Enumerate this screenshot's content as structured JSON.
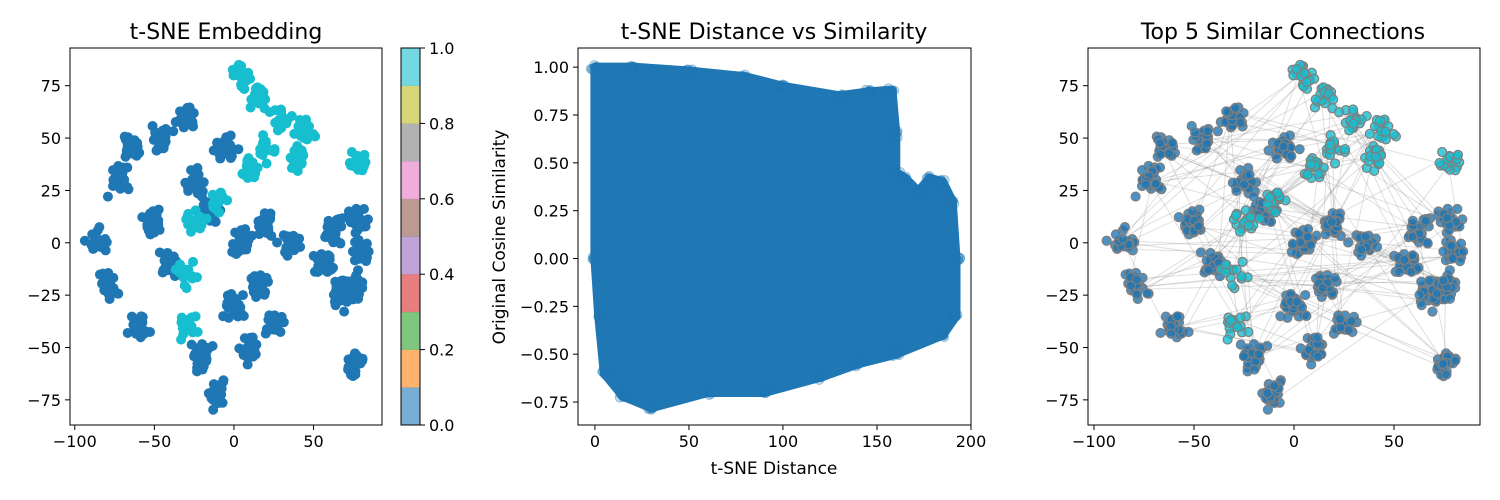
{
  "chart_data": [
    {
      "type": "scatter",
      "title": "t-SNE Embedding",
      "xlabel": "",
      "ylabel": "",
      "xlim": [
        -103,
        93
      ],
      "ylim": [
        -87,
        93
      ],
      "xticks": [
        -100,
        -50,
        0,
        50
      ],
      "yticks": [
        -75,
        -50,
        -25,
        0,
        25,
        50,
        75
      ],
      "tick_labels_x": [
        "−100",
        "−50",
        "0",
        "50"
      ],
      "tick_labels_y": [
        "−75",
        "−50",
        "−25",
        "0",
        "25",
        "50",
        "75"
      ],
      "grid": false,
      "colorbar": {
        "range": [
          0.0,
          1.0
        ],
        "ticks": [
          "0.0",
          "0.2",
          "0.4",
          "0.6",
          "0.8",
          "1.0"
        ],
        "colors": [
          "#1f77b4",
          "#ff7f0e",
          "#2ca02c",
          "#d62728",
          "#9467bd",
          "#8c564b",
          "#e377c2",
          "#7f7f7f",
          "#bcbd22",
          "#17becf"
        ]
      },
      "series": [
        {
          "color": "#1f77b4",
          "values": [
            [
              -85,
              0
            ],
            [
              -80,
              -20
            ],
            [
              -72,
              30
            ],
            [
              -65,
              45
            ],
            [
              -60,
              -40
            ],
            [
              -50,
              10
            ],
            [
              -45,
              50
            ],
            [
              -40,
              -10
            ],
            [
              -30,
              60
            ],
            [
              -25,
              30
            ],
            [
              -20,
              -55
            ],
            [
              -15,
              15
            ],
            [
              -10,
              -72
            ],
            [
              -5,
              45
            ],
            [
              0,
              -30
            ],
            [
              5,
              0
            ],
            [
              10,
              -50
            ],
            [
              15,
              -20
            ],
            [
              20,
              10
            ],
            [
              25,
              -40
            ],
            [
              35,
              0
            ],
            [
              55,
              -10
            ],
            [
              62,
              5
            ],
            [
              68,
              -25
            ],
            [
              75,
              -20
            ],
            [
              78,
              10
            ],
            [
              80,
              -5
            ],
            [
              76,
              -58
            ]
          ]
        },
        {
          "color": "#17becf",
          "values": [
            [
              5,
              80
            ],
            [
              15,
              70
            ],
            [
              30,
              58
            ],
            [
              45,
              55
            ],
            [
              20,
              45
            ],
            [
              40,
              40
            ],
            [
              10,
              35
            ],
            [
              -10,
              20
            ],
            [
              -25,
              10
            ],
            [
              -30,
              -15
            ],
            [
              -30,
              -40
            ],
            [
              78,
              38
            ]
          ]
        }
      ]
    },
    {
      "type": "scatter",
      "title": "t-SNE Distance vs Similarity",
      "xlabel": "t-SNE Distance",
      "ylabel": "Original Cosine Similarity",
      "xlim": [
        -9,
        200
      ],
      "ylim": [
        -0.87,
        1.1
      ],
      "xticks": [
        0,
        50,
        100,
        150,
        200
      ],
      "yticks": [
        -0.75,
        -0.5,
        -0.25,
        0.0,
        0.25,
        0.5,
        0.75,
        1.0
      ],
      "tick_labels_x": [
        "0",
        "50",
        "100",
        "150",
        "200"
      ],
      "tick_labels_y": [
        "−0.75",
        "−0.50",
        "−0.25",
        "0.00",
        "0.25",
        "0.50",
        "0.75",
        "1.00"
      ],
      "grid": false,
      "color": "#1f77b4",
      "upper_envelope": [
        [
          0,
          1.0
        ],
        [
          20,
          1.0
        ],
        [
          50,
          0.98
        ],
        [
          80,
          0.95
        ],
        [
          100,
          0.9
        ],
        [
          130,
          0.85
        ],
        [
          145,
          0.87
        ],
        [
          158,
          0.88
        ],
        [
          160,
          0.65
        ],
        [
          160,
          0.45
        ],
        [
          165,
          0.42
        ],
        [
          172,
          0.35
        ],
        [
          178,
          0.42
        ],
        [
          185,
          0.4
        ],
        [
          190,
          0.3
        ],
        [
          192,
          0.0
        ]
      ],
      "lower_envelope": [
        [
          192,
          -0.3
        ],
        [
          185,
          -0.4
        ],
        [
          160,
          -0.5
        ],
        [
          140,
          -0.55
        ],
        [
          120,
          -0.62
        ],
        [
          90,
          -0.7
        ],
        [
          60,
          -0.7
        ],
        [
          30,
          -0.78
        ],
        [
          15,
          -0.72
        ],
        [
          5,
          -0.6
        ],
        [
          2,
          -0.3
        ],
        [
          0,
          0.0
        ]
      ]
    },
    {
      "type": "scatter",
      "title": "Top 5 Similar Connections",
      "xlabel": "",
      "ylabel": "",
      "xlim": [
        -103,
        93
      ],
      "ylim": [
        -87,
        93
      ],
      "xticks": [
        -100,
        -50,
        0,
        50
      ],
      "yticks": [
        -75,
        -50,
        -25,
        0,
        25,
        50,
        75
      ],
      "tick_labels_x": [
        "−100",
        "−50",
        "0",
        "50"
      ],
      "tick_labels_y": [
        "−75",
        "−50",
        "−25",
        "0",
        "25",
        "50",
        "75"
      ],
      "grid": false,
      "edge_color": "#7f7f7f",
      "series": [
        {
          "color": "#1f77b4",
          "values": [
            [
              -85,
              0
            ],
            [
              -80,
              -20
            ],
            [
              -72,
              30
            ],
            [
              -65,
              45
            ],
            [
              -60,
              -40
            ],
            [
              -50,
              10
            ],
            [
              -45,
              50
            ],
            [
              -40,
              -10
            ],
            [
              -30,
              60
            ],
            [
              -25,
              30
            ],
            [
              -20,
              -55
            ],
            [
              -15,
              15
            ],
            [
              -10,
              -72
            ],
            [
              -5,
              45
            ],
            [
              0,
              -30
            ],
            [
              5,
              0
            ],
            [
              10,
              -50
            ],
            [
              15,
              -20
            ],
            [
              20,
              10
            ],
            [
              25,
              -40
            ],
            [
              35,
              0
            ],
            [
              55,
              -10
            ],
            [
              62,
              5
            ],
            [
              68,
              -25
            ],
            [
              75,
              -20
            ],
            [
              78,
              10
            ],
            [
              80,
              -5
            ],
            [
              76,
              -58
            ]
          ]
        },
        {
          "color": "#17becf",
          "values": [
            [
              5,
              80
            ],
            [
              15,
              70
            ],
            [
              30,
              58
            ],
            [
              45,
              55
            ],
            [
              20,
              45
            ],
            [
              40,
              40
            ],
            [
              10,
              35
            ],
            [
              -10,
              20
            ],
            [
              -25,
              10
            ],
            [
              -30,
              -15
            ],
            [
              -30,
              -40
            ],
            [
              78,
              38
            ]
          ]
        }
      ]
    }
  ]
}
